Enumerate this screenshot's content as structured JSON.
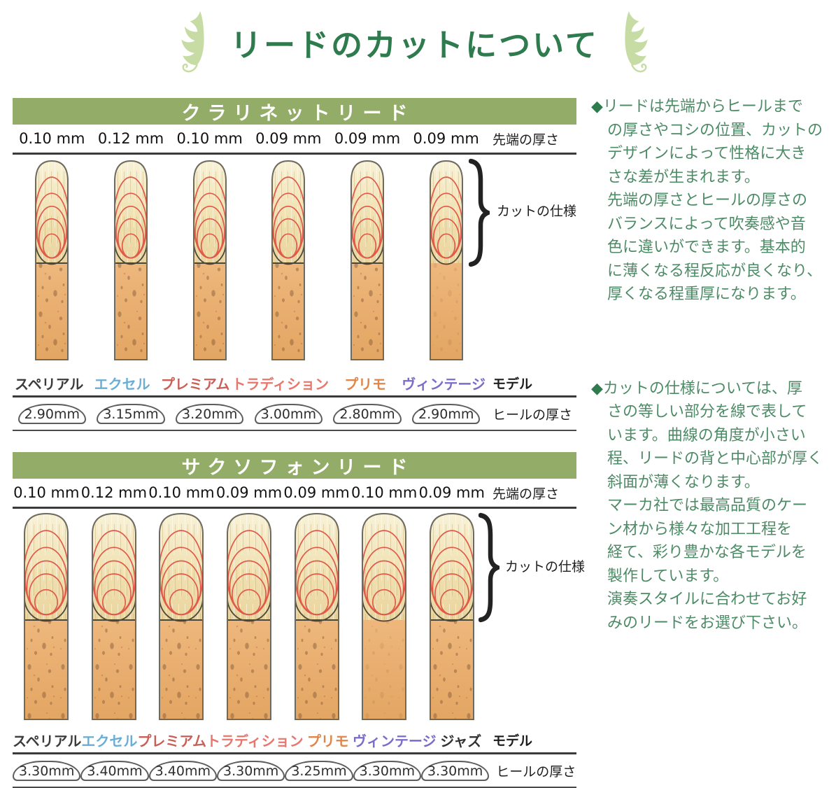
{
  "title": {
    "text": "リードのカットについて"
  },
  "labels": {
    "tip": "先端の厚さ",
    "cut": "カットの仕様",
    "model": "モデル",
    "heel": "ヒールの厚さ"
  },
  "theme": {
    "title_green": "#2e7b4e",
    "body_green": "#4d8b66",
    "banner_green": "#93ac68",
    "leaf_green": "#c6dca4",
    "arc_red": "#e05a49",
    "line_dark": "#3a3a3a",
    "vamp_light": "#f8f2d8",
    "vamp_dark": "#e9d49e",
    "bark_light": "#eeb77c",
    "bark_dark": "#e3a562"
  },
  "sections": [
    {
      "id": "clarinet",
      "banner": "クラリネットリード",
      "tips": [
        "0.10 mm",
        "0.12 mm",
        "0.10 mm",
        "0.09 mm",
        "0.09 mm",
        "0.09 mm"
      ],
      "reeds": [
        "standard",
        "standard",
        "standard",
        "standard",
        "standard",
        "vintage"
      ],
      "reed_w": 50,
      "reed_h": 290,
      "models": [
        {
          "label": "スペリアル",
          "color": "#3c3c3c"
        },
        {
          "label": "エクセル",
          "color": "#6aaed6"
        },
        {
          "label": "プレミアム",
          "color": "#c95f56"
        },
        {
          "label": "トラディション",
          "color": "#e8766c"
        },
        {
          "label": "プリモ",
          "color": "#e08648"
        },
        {
          "label": "ヴィンテージ",
          "color": "#7b6cc8"
        }
      ],
      "heels": [
        "2.90mm",
        "3.15mm",
        "3.20mm",
        "3.00mm",
        "2.80mm",
        "2.90mm"
      ]
    },
    {
      "id": "saxophone",
      "banner": "サクソフォンリード",
      "tips": [
        "0.10 mm",
        "0.12 mm",
        "0.10 mm",
        "0.09 mm",
        "0.09 mm",
        "0.10 mm",
        "0.09 mm"
      ],
      "reeds": [
        "standard",
        "standard",
        "standard",
        "standard",
        "standard",
        "vintage",
        "standard"
      ],
      "reed_w": 66,
      "reed_h": 300,
      "models": [
        {
          "label": "スペリアル",
          "color": "#3c3c3c"
        },
        {
          "label": "エクセル",
          "color": "#6aaed6"
        },
        {
          "label": "プレミアム",
          "color": "#c95f56"
        },
        {
          "label": "トラディション",
          "color": "#e8766c"
        },
        {
          "label": "プリモ",
          "color": "#e08648"
        },
        {
          "label": "ヴィンテージ",
          "color": "#7b6cc8"
        },
        {
          "label": "ジャズ",
          "color": "#333333"
        }
      ],
      "heels": [
        "3.30mm",
        "3.40mm",
        "3.40mm",
        "3.30mm",
        "3.25mm",
        "3.30mm",
        "3.30mm"
      ]
    }
  ],
  "paragraphs": [
    {
      "bullet": "◆",
      "lines": [
        "リードは先端からヒールまで",
        "の厚さやコシの位置、カットの",
        "デザインによって性格に大き",
        "さな差が生まれます。",
        "先端の厚さとヒールの厚さの",
        "バランスによって吹奏感や音",
        "色に違いができます。基本的",
        "に薄くなる程反応が良くなり、",
        "厚くなる程重厚になります。"
      ]
    },
    {
      "bullet": "◆",
      "lines": [
        "カットの仕様については、厚",
        "さの等しい部分を線で表して",
        "います。曲線の角度が小さい",
        "程、リードの背と中心部が厚く",
        "斜面が薄くなります。",
        "マーカ社では最高品質のケー",
        "ン材から様々な加工工程を",
        "経て、彩り豊かな各モデルを",
        "製作しています。",
        "演奏スタイルに合わせてお好",
        "みのリードをお選び下さい。"
      ]
    }
  ]
}
